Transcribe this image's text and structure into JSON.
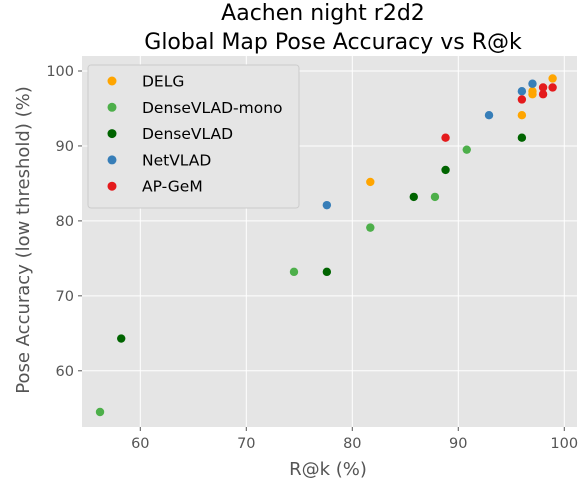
{
  "chart_data": {
    "type": "scatter",
    "title": "Aachen night r2d2\nGlobal Map Pose Accuracy vs R@k",
    "xlabel": "R@k (%)",
    "ylabel": "Pose Accuracy (low threshold) (%)",
    "xlim": [
      54.5,
      101.2
    ],
    "ylim": [
      52.5,
      102.0
    ],
    "xticks": [
      60,
      70,
      80,
      90,
      100
    ],
    "yticks": [
      60,
      70,
      80,
      90,
      100
    ],
    "grid": true,
    "legend_position": "upper-left",
    "background": "#e5e5e5",
    "series": [
      {
        "name": "DELG",
        "color": "#ffa500",
        "points": [
          {
            "x": 81.7,
            "y": 85.2
          },
          {
            "x": 96.0,
            "y": 94.1
          },
          {
            "x": 97.0,
            "y": 96.9
          },
          {
            "x": 97.0,
            "y": 97.3
          },
          {
            "x": 98.9,
            "y": 99.0
          }
        ]
      },
      {
        "name": "DenseVLAD-mono",
        "color": "#4daf4a",
        "points": [
          {
            "x": 56.2,
            "y": 54.5
          },
          {
            "x": 74.5,
            "y": 73.2
          },
          {
            "x": 81.7,
            "y": 79.1
          },
          {
            "x": 87.8,
            "y": 83.2
          },
          {
            "x": 90.8,
            "y": 89.5
          }
        ]
      },
      {
        "name": "DenseVLAD",
        "color": "#006400",
        "points": [
          {
            "x": 58.2,
            "y": 64.3
          },
          {
            "x": 77.6,
            "y": 73.2
          },
          {
            "x": 85.8,
            "y": 83.2
          },
          {
            "x": 88.8,
            "y": 86.8
          },
          {
            "x": 96.0,
            "y": 91.1
          }
        ]
      },
      {
        "name": "NetVLAD",
        "color": "#377eb8",
        "points": [
          {
            "x": 77.6,
            "y": 82.1
          },
          {
            "x": 92.9,
            "y": 94.1
          },
          {
            "x": 96.0,
            "y": 97.3
          },
          {
            "x": 97.0,
            "y": 98.3
          }
        ]
      },
      {
        "name": "AP-GeM",
        "color": "#e41a1c",
        "points": [
          {
            "x": 88.8,
            "y": 91.1
          },
          {
            "x": 96.0,
            "y": 96.2
          },
          {
            "x": 98.0,
            "y": 96.9
          },
          {
            "x": 98.0,
            "y": 97.8
          },
          {
            "x": 98.9,
            "y": 97.8
          }
        ]
      }
    ]
  }
}
